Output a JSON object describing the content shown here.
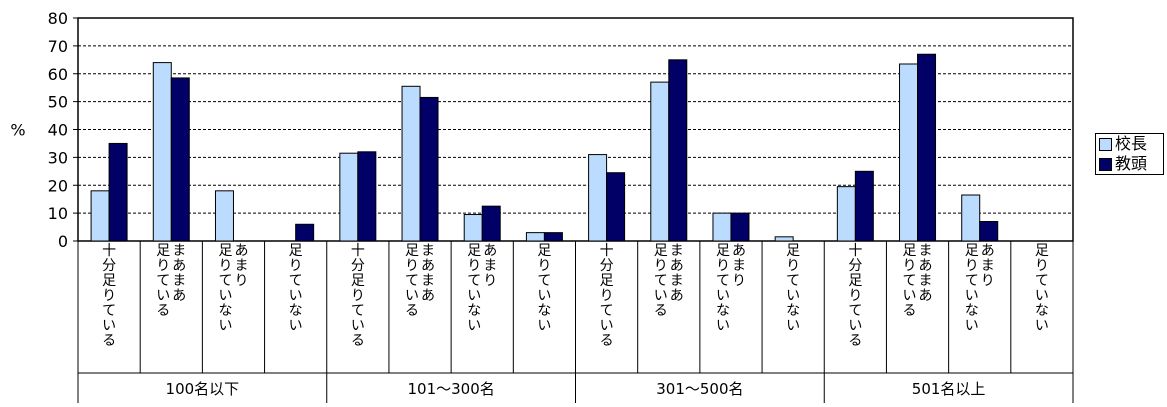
{
  "chart_data": {
    "type": "bar",
    "ylabel": "%",
    "ylim": [
      0,
      80
    ],
    "yticks": [
      0,
      10,
      20,
      30,
      40,
      50,
      60,
      70,
      80
    ],
    "grid": true,
    "legend_position": "right",
    "groups": [
      {
        "label": "100名以下",
        "categories": [
          {
            "lines": [
              "十分足りている"
            ],
            "values": [
              18,
              35
            ]
          },
          {
            "lines": [
              "まあまあ",
              "足りている"
            ],
            "values": [
              64,
              58.5
            ]
          },
          {
            "lines": [
              "あまり",
              "足りていない"
            ],
            "values": [
              18,
              0
            ]
          },
          {
            "lines": [
              "足りていない"
            ],
            "values": [
              0,
              6
            ]
          }
        ]
      },
      {
        "label": "101～300名",
        "categories": [
          {
            "lines": [
              "十分足りている"
            ],
            "values": [
              31.5,
              32
            ]
          },
          {
            "lines": [
              "まあまあ",
              "足りている"
            ],
            "values": [
              55.5,
              51.5
            ]
          },
          {
            "lines": [
              "あまり",
              "足りていない"
            ],
            "values": [
              9.5,
              12.5
            ]
          },
          {
            "lines": [
              "足りていない"
            ],
            "values": [
              3,
              3
            ]
          }
        ]
      },
      {
        "label": "301～500名",
        "categories": [
          {
            "lines": [
              "十分足りている"
            ],
            "values": [
              31,
              24.5
            ]
          },
          {
            "lines": [
              "まあまあ",
              "足りている"
            ],
            "values": [
              57,
              65
            ]
          },
          {
            "lines": [
              "あまり",
              "足りていない"
            ],
            "values": [
              10,
              10
            ]
          },
          {
            "lines": [
              "足りていない"
            ],
            "values": [
              1.5,
              0
            ]
          }
        ]
      },
      {
        "label": "501名以上",
        "categories": [
          {
            "lines": [
              "十分足りている"
            ],
            "values": [
              19.5,
              25
            ]
          },
          {
            "lines": [
              "まあまあ",
              "足りている"
            ],
            "values": [
              63.5,
              67
            ]
          },
          {
            "lines": [
              "あまり",
              "足りていない"
            ],
            "values": [
              16.5,
              7
            ]
          },
          {
            "lines": [
              "足りていない"
            ],
            "values": [
              0,
              0
            ]
          }
        ]
      }
    ],
    "series": [
      {
        "name": "校長",
        "color": "#bcdcff"
      },
      {
        "name": "教頭",
        "color": "#000066"
      }
    ]
  }
}
